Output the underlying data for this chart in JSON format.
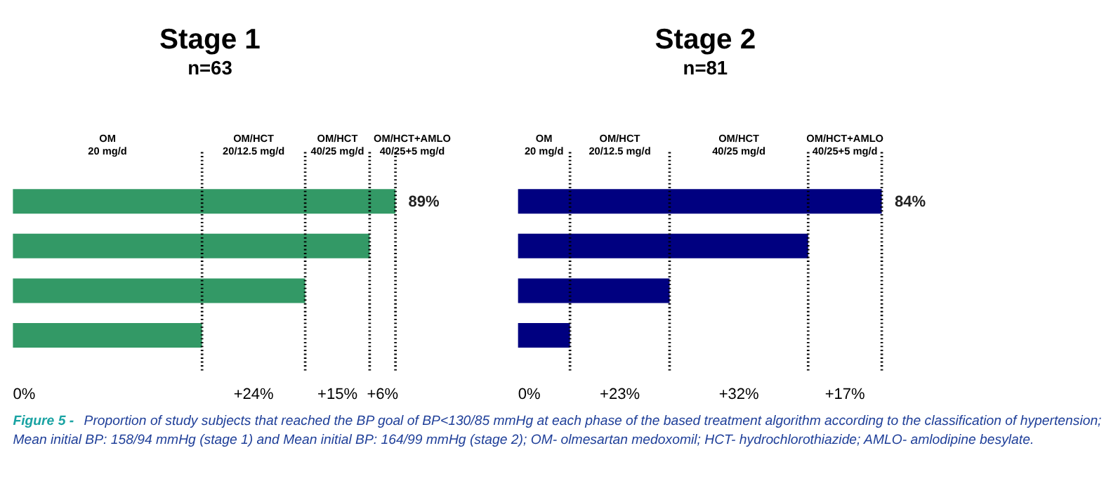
{
  "chart_data": [
    {
      "type": "bar",
      "orientation": "horizontal",
      "title": "Stage 1",
      "subtitle": "n=63",
      "categories": [
        null,
        null,
        null,
        null
      ],
      "series": [
        {
          "color": "#339966",
          "values": [
            89,
            83,
            68,
            44
          ],
          "value_labels": [
            "89%",
            null,
            null,
            null
          ]
        }
      ],
      "grid": false,
      "ref_lines": [
        {
          "axis": "x",
          "value": 44,
          "line_style": "dotted"
        },
        {
          "axis": "x",
          "value": 68,
          "line_style": "dotted"
        },
        {
          "axis": "x",
          "value": 83,
          "line_style": "dotted"
        },
        {
          "axis": "x",
          "value": 89,
          "line_style": "dotted"
        }
      ],
      "annotations": [
        "OM\n20 mg/d",
        "OM/HCT\n20/12.5 mg/d",
        "OM/HCT\n40/25 mg/d",
        "OM/HCT+AMLO\n40/25+5 mg/d",
        "0%",
        "+24%",
        "+15%",
        "+6%"
      ]
    },
    {
      "type": "bar",
      "orientation": "horizontal",
      "title": "Stage 2",
      "subtitle": "n=81",
      "categories": [
        null,
        null,
        null,
        null
      ],
      "series": [
        {
          "color": "#000080",
          "values": [
            84,
            67,
            35,
            12
          ],
          "value_labels": [
            "84%",
            null,
            null,
            null
          ]
        }
      ],
      "grid": false,
      "ref_lines": [
        {
          "axis": "x",
          "value": 12,
          "line_style": "dotted"
        },
        {
          "axis": "x",
          "value": 35,
          "line_style": "dotted"
        },
        {
          "axis": "x",
          "value": 67,
          "line_style": "dotted"
        },
        {
          "axis": "x",
          "value": 84,
          "line_style": "dotted"
        }
      ],
      "annotations": [
        "OM\n20 mg/d",
        "OM/HCT\n20/12.5 mg/d",
        "OM/HCT\n40/25 mg/d",
        "OM/HCT+AMLO\n40/25+5 mg/d",
        "0%",
        "+23%",
        "+32%",
        "+17%",
        "Figure 5 -",
        "Proportion of study subjects that reached the BP goal of BP<130/85 mmHg at each phase of the based treatment algorithm according to the classification of hypertension;",
        "Mean initial BP: 158/94 mmHg (stage 1) and Mean initial BP: 164/99 mmHg (stage 2); OM- olmesartan medoxomil; HCT- hydrochlorothiazide; AMLO- amlodipine besylate."
      ]
    }
  ]
}
